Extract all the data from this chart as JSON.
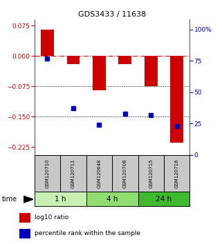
{
  "title": "GDS3433 / 11638",
  "samples": [
    "GSM120710",
    "GSM120711",
    "GSM120648",
    "GSM120708",
    "GSM120715",
    "GSM120716"
  ],
  "log10_ratio": [
    0.065,
    -0.02,
    -0.085,
    -0.02,
    -0.075,
    -0.215
  ],
  "percentile_rank": [
    77,
    37,
    24,
    33,
    32,
    23
  ],
  "ylim_left": [
    -0.245,
    0.09
  ],
  "ylim_right": [
    0,
    108
  ],
  "yticks_left": [
    0.075,
    0,
    -0.075,
    -0.15,
    -0.225
  ],
  "yticks_right": [
    100,
    75,
    50,
    25,
    0
  ],
  "groups": [
    {
      "label": "1 h",
      "span": [
        0,
        1
      ],
      "color": "#c8f0b0"
    },
    {
      "label": "4 h",
      "span": [
        2,
        3
      ],
      "color": "#90dc70"
    },
    {
      "label": "24 h",
      "span": [
        4,
        5
      ],
      "color": "#40b830"
    }
  ],
  "bar_color": "#cc0000",
  "dot_color": "#0000bb",
  "zero_line_color": "#cc0000",
  "sample_box_color": "#c8c8c8",
  "bar_width": 0.5,
  "legend_items": [
    {
      "color": "#cc0000",
      "label": "log10 ratio"
    },
    {
      "color": "#0000bb",
      "label": "percentile rank within the sample"
    }
  ]
}
